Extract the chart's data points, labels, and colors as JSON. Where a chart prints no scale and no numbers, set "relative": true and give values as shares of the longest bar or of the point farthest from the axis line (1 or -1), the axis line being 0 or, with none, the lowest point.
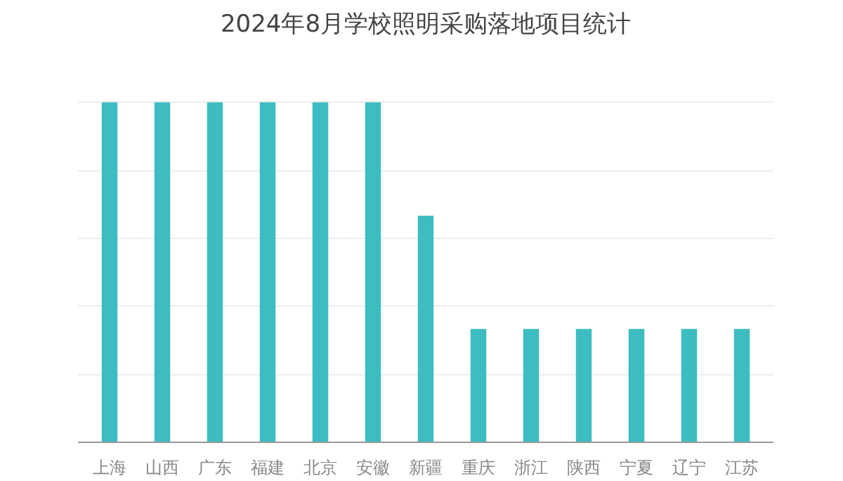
{
  "chart_data": {
    "type": "bar",
    "title": "2024年8月学校照明采购落地项目统计",
    "categories": [
      "上海",
      "山西",
      "广东",
      "福建",
      "北京",
      "安徽",
      "新疆",
      "重庆",
      "浙江",
      "陕西",
      "宁夏",
      "辽宁",
      "江苏"
    ],
    "values": [
      1,
      1,
      1,
      1,
      1,
      1,
      0.6667,
      0.3333,
      0.3333,
      0.3333,
      0.3333,
      0.3333,
      0.3333
    ],
    "color": "#3dbdc1",
    "relative": true,
    "grid": "y"
  }
}
